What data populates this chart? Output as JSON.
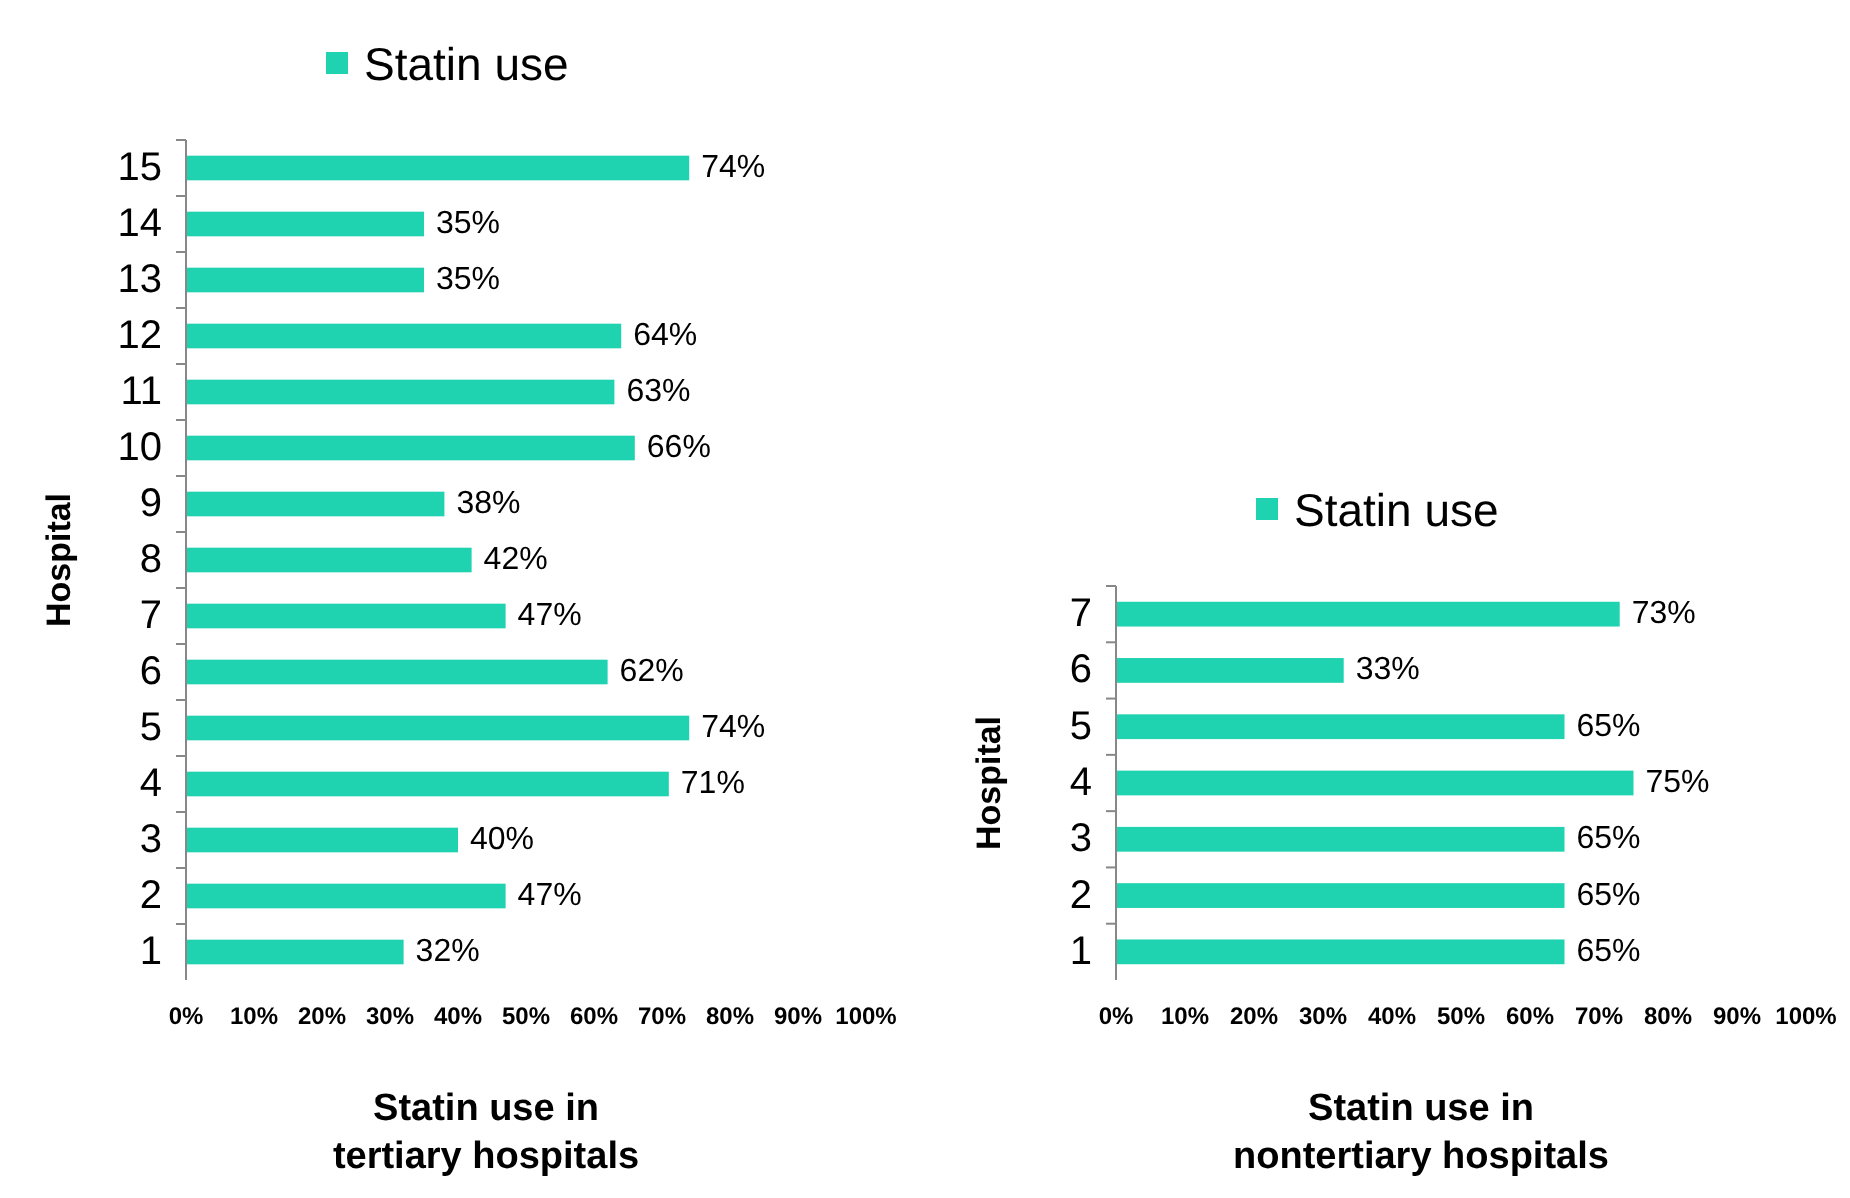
{
  "chart_data": [
    {
      "type": "bar",
      "orientation": "horizontal",
      "ylabel": "Hospital",
      "xlabel": "Statin use in\ntertiary hospitals",
      "legend": "top",
      "grid": false,
      "categories": [
        "15",
        "14",
        "13",
        "12",
        "11",
        "10",
        "9",
        "8",
        "7",
        "6",
        "5",
        "4",
        "3",
        "2",
        "1"
      ],
      "series": [
        {
          "name": "Statin use",
          "color": "#1fd3b0",
          "values": [
            74,
            35,
            35,
            64,
            63,
            66,
            38,
            42,
            47,
            62,
            74,
            71,
            40,
            47,
            32
          ],
          "value_labels": [
            "74%",
            "35%",
            "35%",
            "64%",
            "63%",
            "66%",
            "38%",
            "42%",
            "47%",
            "62%",
            "74%",
            "71%",
            "40%",
            "47%",
            "32%"
          ]
        }
      ],
      "xlim": [
        0,
        100
      ],
      "xticks": [
        {
          "value": 0,
          "label": "0%"
        },
        {
          "value": 10,
          "label": "10%"
        },
        {
          "value": 20,
          "label": "20%"
        },
        {
          "value": 30,
          "label": "30%"
        },
        {
          "value": 40,
          "label": "40%"
        },
        {
          "value": 50,
          "label": "50%"
        },
        {
          "value": 60,
          "label": "60%"
        },
        {
          "value": 70,
          "label": "70%"
        },
        {
          "value": 80,
          "label": "80%"
        },
        {
          "value": 90,
          "label": "90%"
        },
        {
          "value": 100,
          "label": "100%"
        }
      ]
    },
    {
      "type": "bar",
      "orientation": "horizontal",
      "ylabel": "Hospital",
      "xlabel": "Statin use in\nnontertiary hospitals",
      "legend": "top",
      "grid": false,
      "categories": [
        "7",
        "6",
        "5",
        "4",
        "3",
        "2",
        "1"
      ],
      "series": [
        {
          "name": "Statin use",
          "color": "#1fd3b0",
          "values": [
            73,
            33,
            65,
            75,
            65,
            65,
            65
          ],
          "value_labels": [
            "73%",
            "33%",
            "65%",
            "75%",
            "65%",
            "65%",
            "65%"
          ]
        }
      ],
      "xlim": [
        0,
        100
      ],
      "xticks": [
        {
          "value": 0,
          "label": "0%"
        },
        {
          "value": 10,
          "label": "10%"
        },
        {
          "value": 20,
          "label": "20%"
        },
        {
          "value": 30,
          "label": "30%"
        },
        {
          "value": 40,
          "label": "40%"
        },
        {
          "value": 50,
          "label": "50%"
        },
        {
          "value": 60,
          "label": "60%"
        },
        {
          "value": 70,
          "label": "70%"
        },
        {
          "value": 80,
          "label": "80%"
        },
        {
          "value": 90,
          "label": "90%"
        },
        {
          "value": 100,
          "label": "100%"
        }
      ]
    }
  ]
}
